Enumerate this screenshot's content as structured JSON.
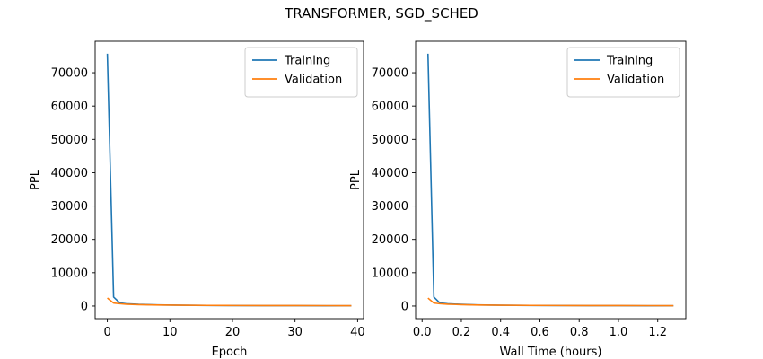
{
  "figure_title": "TRANSFORMER, SGD_SCHED",
  "colors": {
    "training": "#1f77b4",
    "validation": "#ff7f0e"
  },
  "chart_data": [
    {
      "type": "line",
      "title": "",
      "xlabel": "Epoch",
      "ylabel": "PPL",
      "xlim": [
        -1.95,
        40.95
      ],
      "ylim": [
        -3780,
        79440
      ],
      "xticks": [
        0,
        10,
        20,
        30,
        40
      ],
      "xtick_labels": [
        "0",
        "10",
        "20",
        "30",
        "40"
      ],
      "yticks": [
        0,
        10000,
        20000,
        30000,
        40000,
        50000,
        60000,
        70000
      ],
      "ytick_labels": [
        "0",
        "10000",
        "20000",
        "30000",
        "40000",
        "50000",
        "60000",
        "70000"
      ],
      "legend_position": "upper right",
      "grid": false,
      "series": [
        {
          "name": "Training",
          "color": "#1f77b4",
          "x": [
            0,
            1,
            2,
            3,
            5,
            8,
            12,
            16,
            20,
            25,
            30,
            35,
            39
          ],
          "y": [
            75700,
            2700,
            950,
            700,
            500,
            350,
            250,
            180,
            140,
            110,
            95,
            85,
            80
          ]
        },
        {
          "name": "Validation",
          "color": "#ff7f0e",
          "x": [
            0,
            1,
            2,
            3,
            5,
            8,
            12,
            16,
            20,
            25,
            30,
            35,
            39
          ],
          "y": [
            2400,
            900,
            700,
            550,
            420,
            320,
            240,
            190,
            160,
            140,
            130,
            125,
            120
          ]
        }
      ]
    },
    {
      "type": "line",
      "title": "",
      "xlabel": "Wall Time (hours)",
      "ylabel": "PPL",
      "xlim": [
        -0.033,
        1.343
      ],
      "ylim": [
        -3780,
        79440
      ],
      "xticks": [
        0.0,
        0.2,
        0.4,
        0.6,
        0.8,
        1.0,
        1.2
      ],
      "xtick_labels": [
        "0.0",
        "0.2",
        "0.4",
        "0.6",
        "0.8",
        "1.0",
        "1.2"
      ],
      "yticks": [
        0,
        10000,
        20000,
        30000,
        40000,
        50000,
        60000,
        70000
      ],
      "ytick_labels": [
        "0",
        "10000",
        "20000",
        "30000",
        "40000",
        "50000",
        "60000",
        "70000"
      ],
      "legend_position": "upper right",
      "grid": false,
      "series": [
        {
          "name": "Training",
          "color": "#1f77b4",
          "x": [
            0.03,
            0.06,
            0.09,
            0.13,
            0.2,
            0.28,
            0.4,
            0.55,
            0.7,
            0.85,
            1.0,
            1.15,
            1.28
          ],
          "y": [
            75700,
            2700,
            950,
            700,
            500,
            350,
            250,
            180,
            140,
            110,
            95,
            85,
            80
          ]
        },
        {
          "name": "Validation",
          "color": "#ff7f0e",
          "x": [
            0.03,
            0.06,
            0.09,
            0.13,
            0.2,
            0.28,
            0.4,
            0.55,
            0.7,
            0.85,
            1.0,
            1.15,
            1.28
          ],
          "y": [
            2400,
            900,
            700,
            550,
            420,
            320,
            240,
            190,
            160,
            140,
            130,
            125,
            120
          ]
        }
      ]
    }
  ]
}
